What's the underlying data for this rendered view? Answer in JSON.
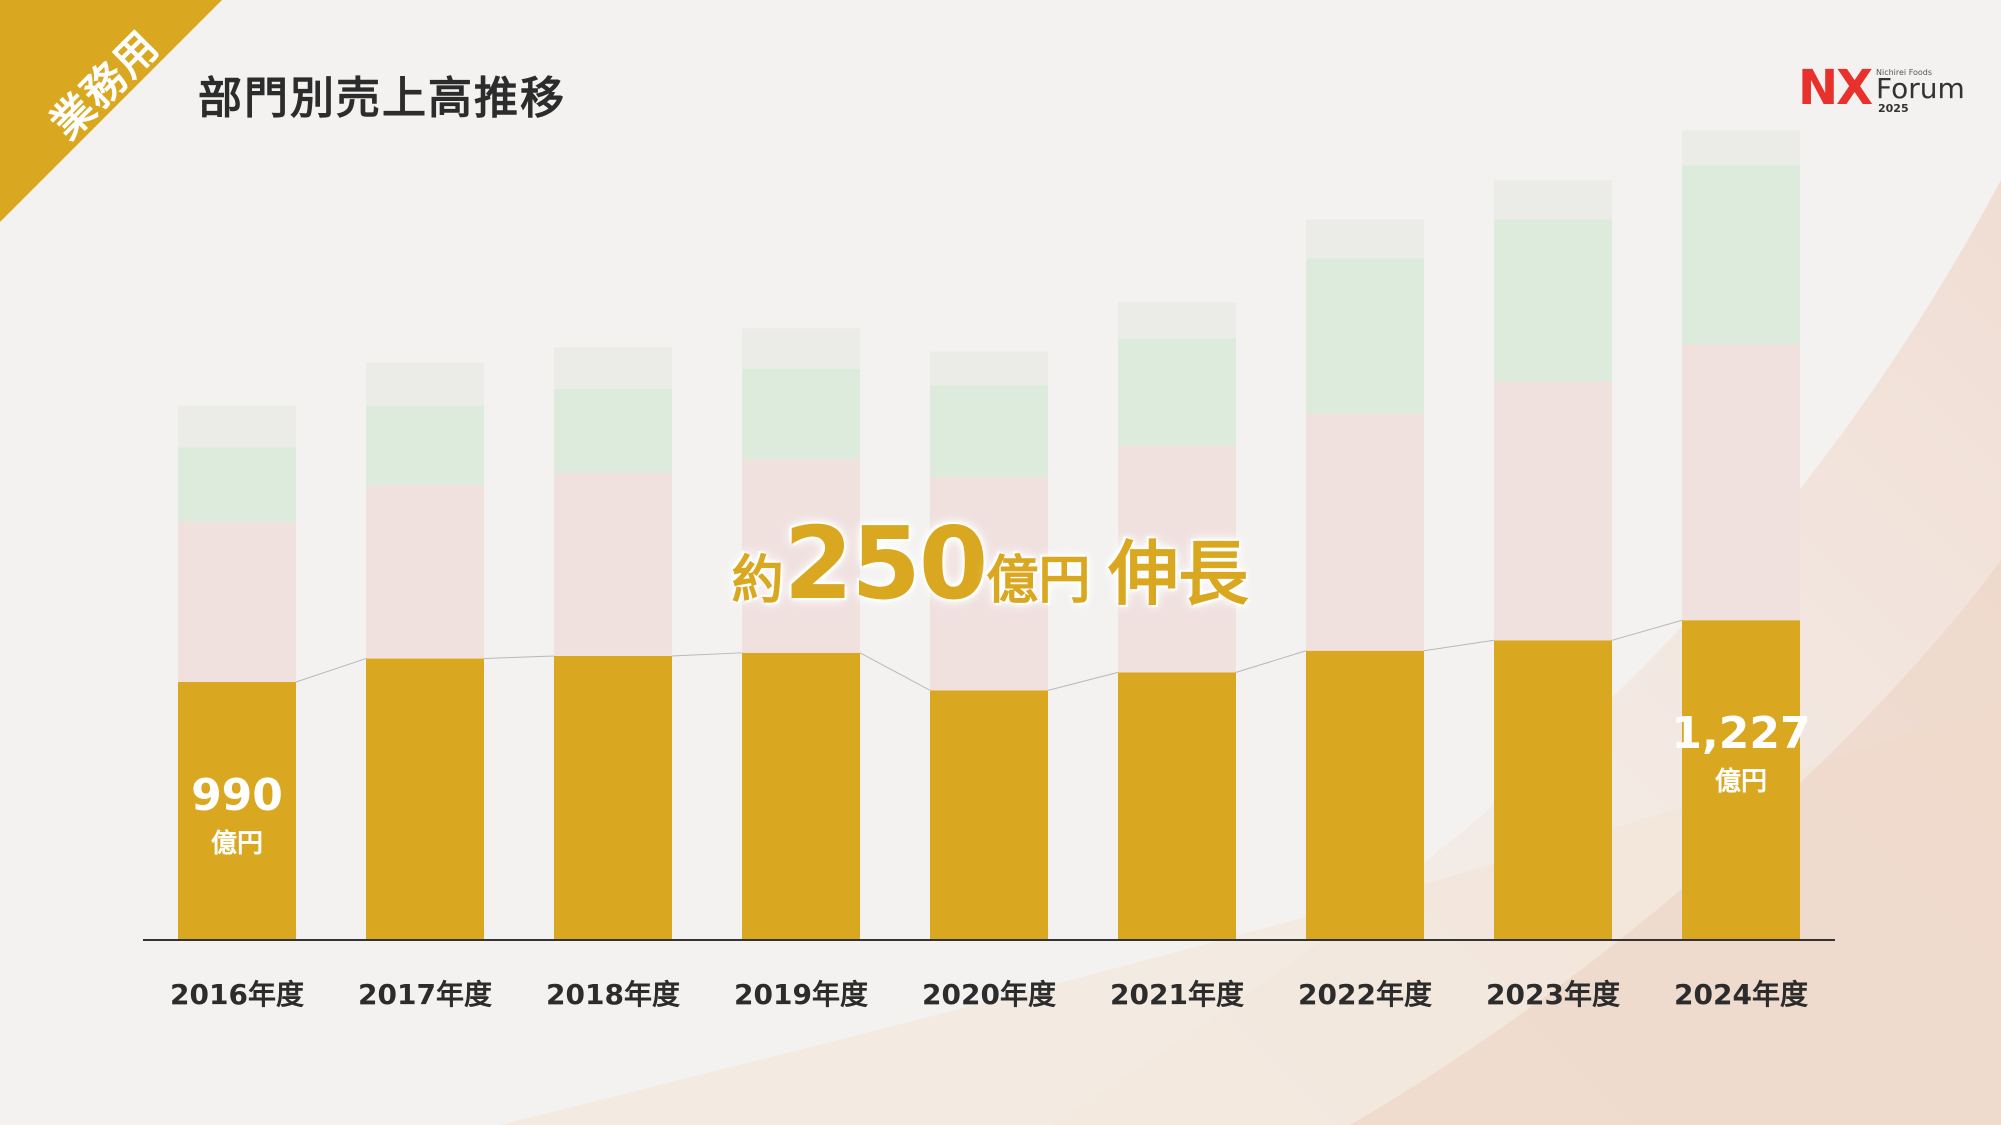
{
  "corner_badge": {
    "label": "業務用",
    "color": "#d9a820"
  },
  "page_title": "部門別売上高推移",
  "logo": {
    "nx": "NX",
    "small": "Nichirei Foods",
    "forum": "Forum",
    "year": "2025"
  },
  "colors": {
    "accent": "#d9a820",
    "segment_pink": "#f0e1df",
    "segment_green": "#dcebdc",
    "segment_gray": "#ebebe8"
  },
  "growth_text": {
    "prefix": "約",
    "number": "250",
    "unit": "億円",
    "suffix": "伸長"
  },
  "chart_data": {
    "type": "bar",
    "stacked": true,
    "categories": [
      "2016年度",
      "2017年度",
      "2018年度",
      "2019年度",
      "2020年度",
      "2021年度",
      "2022年度",
      "2023年度",
      "2024年度"
    ],
    "series": [
      {
        "values": [
          990,
          1080,
          1090,
          1102,
          958,
          1027,
          1110,
          1150,
          1227
        ]
      },
      {
        "values": [
          615,
          665,
          700,
          745,
          820,
          870,
          910,
          995,
          1060
        ]
      },
      {
        "values": [
          285,
          305,
          325,
          345,
          350,
          410,
          595,
          620,
          685
        ]
      },
      {
        "values": [
          160,
          165,
          160,
          155,
          130,
          140,
          150,
          150,
          135
        ]
      }
    ],
    "value_labels": [
      {
        "category": "2016年度",
        "value": "990",
        "unit": "億円"
      },
      {
        "category": "2024年度",
        "value": "1,227",
        "unit": "億円"
      }
    ],
    "ylim": [
      0,
      3300
    ]
  }
}
